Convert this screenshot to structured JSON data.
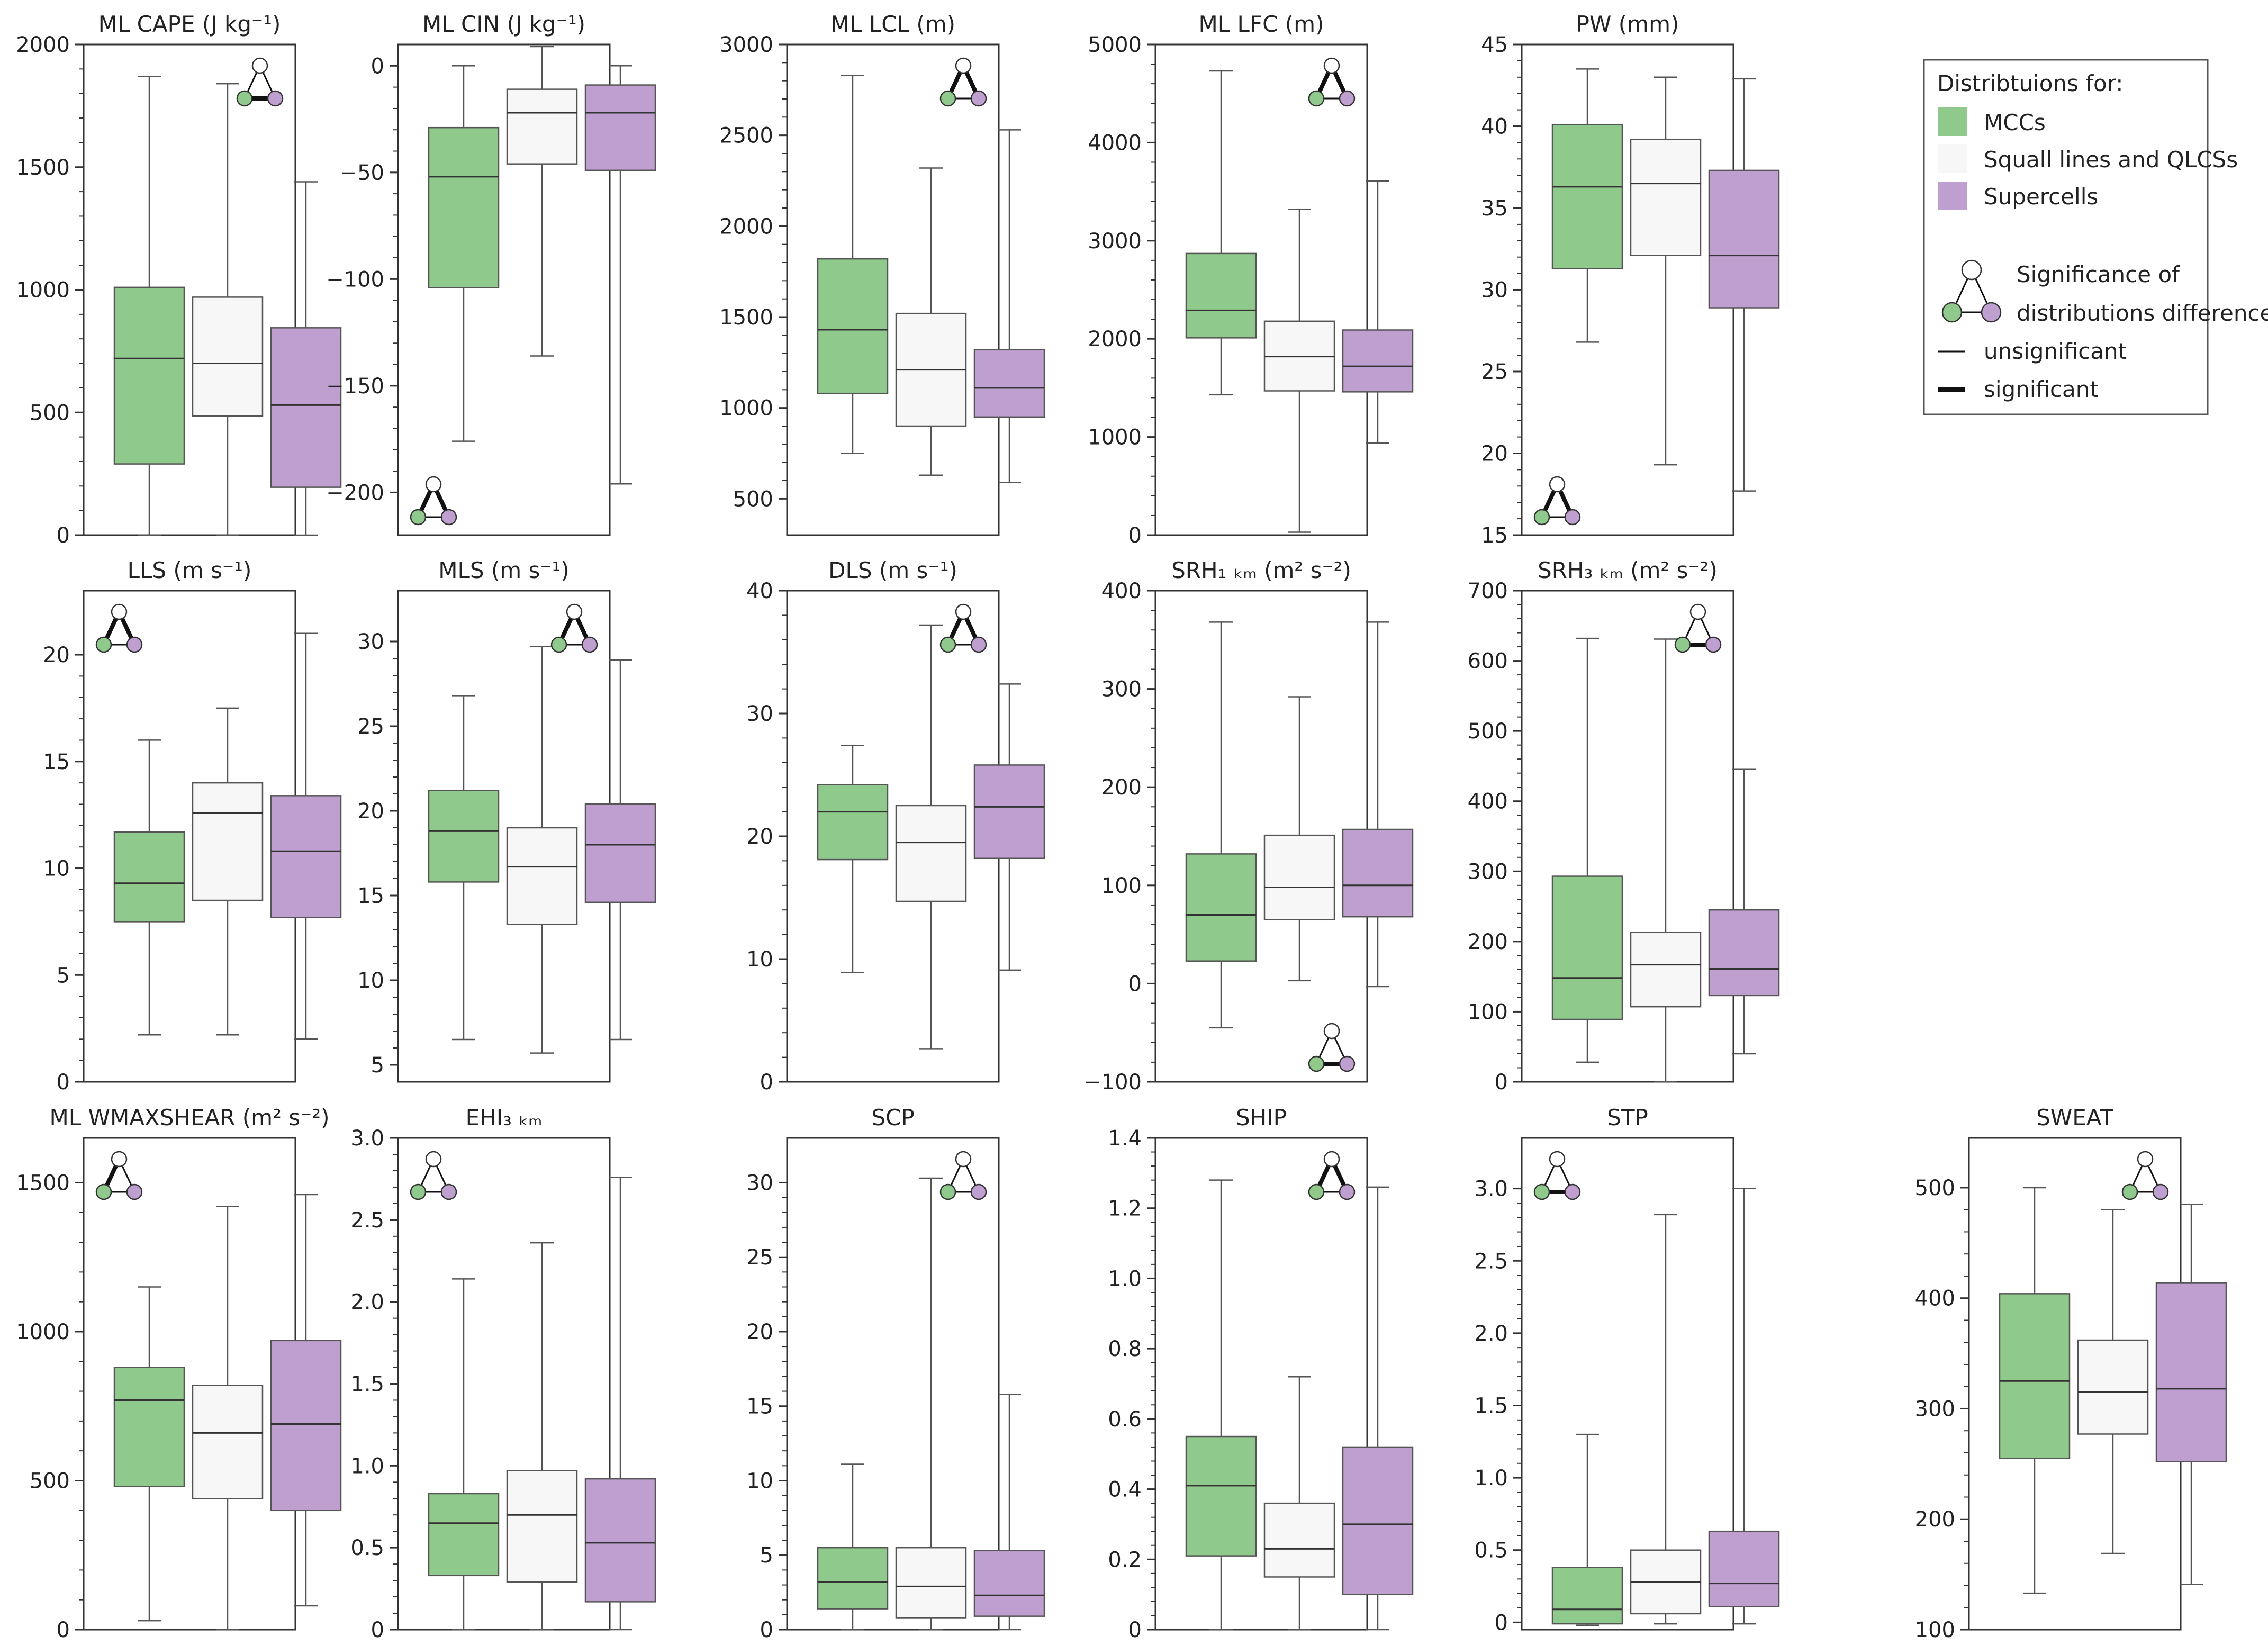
{
  "colors": {
    "mcc": "#8fc98c",
    "squall": "#f7f7f7",
    "supercell": "#bf9fd0",
    "line": "#555555",
    "axis": "#333333"
  },
  "legend": {
    "title": "Distribtuions for:",
    "items": [
      "MCCs",
      "Squall lines and QLCSs",
      "Supercells"
    ],
    "sig_title_1": "Significance of",
    "sig_title_2": "distributions difference",
    "unsig_label": "unsignificant",
    "sig_label": "significant"
  },
  "chart_data": [
    {
      "type": "box",
      "title": "ML CAPE (J kg⁻¹)",
      "ylim": [
        0,
        2000
      ],
      "ticks": [
        0,
        500,
        1000,
        1500,
        2000
      ],
      "tick_labels": [
        "0",
        "500",
        "1000",
        "1500",
        "2000"
      ],
      "sig_pos": "top-right",
      "sig": [
        false,
        true,
        false
      ],
      "series": [
        {
          "name": "MCCs",
          "min": 0,
          "q1": 290,
          "median": 720,
          "q3": 1010,
          "max": 1870
        },
        {
          "name": "Squall lines and QLCSs",
          "min": 0,
          "q1": 485,
          "median": 700,
          "q3": 970,
          "max": 1840
        },
        {
          "name": "Supercells",
          "min": 0,
          "q1": 195,
          "median": 530,
          "q3": 845,
          "max": 1440
        }
      ]
    },
    {
      "type": "box",
      "title": "ML CIN (J kg⁻¹)",
      "ylim": [
        -220,
        10
      ],
      "ticks": [
        -200,
        -150,
        -100,
        -50,
        0
      ],
      "tick_labels": [
        "−200",
        "−150",
        "−100",
        "−50",
        "0"
      ],
      "sig_pos": "bottom-left",
      "sig": [
        true,
        false,
        true
      ],
      "series": [
        {
          "name": "MCCs",
          "min": -176,
          "q1": -104,
          "median": -52,
          "q3": -29,
          "max": 0
        },
        {
          "name": "Squall lines and QLCSs",
          "min": -136,
          "q1": -46,
          "median": -22,
          "q3": -11,
          "max": 9
        },
        {
          "name": "Supercells",
          "min": -196,
          "q1": -49,
          "median": -22,
          "q3": -9,
          "max": 0
        }
      ]
    },
    {
      "type": "box",
      "title": "ML LCL (m)",
      "ylim": [
        300,
        3000
      ],
      "ticks": [
        500,
        1000,
        1500,
        2000,
        2500,
        3000
      ],
      "tick_labels": [
        "500",
        "1000",
        "1500",
        "2000",
        "2500",
        "3000"
      ],
      "sig_pos": "top-right",
      "sig": [
        true,
        false,
        true
      ],
      "series": [
        {
          "name": "MCCs",
          "min": 750,
          "q1": 1080,
          "median": 1430,
          "q3": 1820,
          "max": 2830
        },
        {
          "name": "Squall lines and QLCSs",
          "min": 630,
          "q1": 900,
          "median": 1210,
          "q3": 1520,
          "max": 2320
        },
        {
          "name": "Supercells",
          "min": 590,
          "q1": 950,
          "median": 1110,
          "q3": 1320,
          "max": 2530
        }
      ]
    },
    {
      "type": "box",
      "title": "ML LFC (m)",
      "ylim": [
        0,
        5000
      ],
      "ticks": [
        0,
        1000,
        2000,
        3000,
        4000,
        5000
      ],
      "tick_labels": [
        "0",
        "1000",
        "2000",
        "3000",
        "4000",
        "5000"
      ],
      "sig_pos": "top-right",
      "sig": [
        true,
        false,
        true
      ],
      "series": [
        {
          "name": "MCCs",
          "min": 1430,
          "q1": 2010,
          "median": 2290,
          "q3": 2870,
          "max": 4730
        },
        {
          "name": "Squall lines and QLCSs",
          "min": 30,
          "q1": 1470,
          "median": 1820,
          "q3": 2180,
          "max": 3320
        },
        {
          "name": "Supercells",
          "min": 940,
          "q1": 1460,
          "median": 1720,
          "q3": 2090,
          "max": 3610
        }
      ]
    },
    {
      "type": "box",
      "title": "PW (mm)",
      "ylim": [
        15,
        45
      ],
      "ticks": [
        15,
        20,
        25,
        30,
        35,
        40,
        45
      ],
      "tick_labels": [
        "15",
        "20",
        "25",
        "30",
        "35",
        "40",
        "45"
      ],
      "sig_pos": "bottom-left",
      "sig": [
        true,
        false,
        true
      ],
      "series": [
        {
          "name": "MCCs",
          "min": 26.8,
          "q1": 31.3,
          "median": 36.3,
          "q3": 40.1,
          "max": 43.5
        },
        {
          "name": "Squall lines and QLCSs",
          "min": 19.3,
          "q1": 32.1,
          "median": 36.5,
          "q3": 39.2,
          "max": 43
        },
        {
          "name": "Supercells",
          "min": 17.7,
          "q1": 28.9,
          "median": 32.1,
          "q3": 37.3,
          "max": 42.9
        }
      ]
    },
    {
      "type": "box",
      "title": "LLS (m s⁻¹)",
      "ylim": [
        0,
        23
      ],
      "ticks": [
        0,
        5,
        10,
        15,
        20
      ],
      "tick_labels": [
        "0",
        "5",
        "10",
        "15",
        "20"
      ],
      "sig_pos": "top-left",
      "sig": [
        true,
        false,
        true
      ],
      "series": [
        {
          "name": "MCCs",
          "min": 2.2,
          "q1": 7.5,
          "median": 9.3,
          "q3": 11.7,
          "max": 16
        },
        {
          "name": "Squall lines and QLCSs",
          "min": 2.2,
          "q1": 8.5,
          "median": 12.6,
          "q3": 14,
          "max": 17.5
        },
        {
          "name": "Supercells",
          "min": 2,
          "q1": 7.7,
          "median": 10.8,
          "q3": 13.4,
          "max": 21
        }
      ]
    },
    {
      "type": "box",
      "title": "MLS (m s⁻¹)",
      "ylim": [
        4,
        33
      ],
      "ticks": [
        5,
        10,
        15,
        20,
        25,
        30
      ],
      "tick_labels": [
        "5",
        "10",
        "15",
        "20",
        "25",
        "30"
      ],
      "sig_pos": "top-right",
      "sig": [
        true,
        false,
        true
      ],
      "series": [
        {
          "name": "MCCs",
          "min": 6.5,
          "q1": 15.8,
          "median": 18.8,
          "q3": 21.2,
          "max": 26.8
        },
        {
          "name": "Squall lines and QLCSs",
          "min": 5.7,
          "q1": 13.3,
          "median": 16.7,
          "q3": 19,
          "max": 29.7
        },
        {
          "name": "Supercells",
          "min": 6.5,
          "q1": 14.6,
          "median": 18,
          "q3": 20.4,
          "max": 28.9
        }
      ]
    },
    {
      "type": "box",
      "title": "DLS (m s⁻¹)",
      "ylim": [
        0,
        40
      ],
      "ticks": [
        0,
        10,
        20,
        30,
        40
      ],
      "tick_labels": [
        "0",
        "10",
        "20",
        "30",
        "40"
      ],
      "sig_pos": "top-right",
      "sig": [
        true,
        false,
        true
      ],
      "series": [
        {
          "name": "MCCs",
          "min": 8.9,
          "q1": 18.1,
          "median": 22,
          "q3": 24.2,
          "max": 27.4
        },
        {
          "name": "Squall lines and QLCSs",
          "min": 2.7,
          "q1": 14.7,
          "median": 19.5,
          "q3": 22.5,
          "max": 37.2
        },
        {
          "name": "Supercells",
          "min": 9.1,
          "q1": 18.2,
          "median": 22.4,
          "q3": 25.8,
          "max": 32.4
        }
      ]
    },
    {
      "type": "box",
      "title": "SRH₁ ₖₘ (m² s⁻²)",
      "ylim": [
        -100,
        400
      ],
      "ticks": [
        -100,
        0,
        100,
        200,
        300,
        400
      ],
      "tick_labels": [
        "−100",
        "0",
        "100",
        "200",
        "300",
        "400"
      ],
      "sig_pos": "bottom-right",
      "sig": [
        false,
        true,
        false
      ],
      "series": [
        {
          "name": "MCCs",
          "min": -45,
          "q1": 23,
          "median": 70,
          "q3": 132,
          "max": 368
        },
        {
          "name": "Squall lines and QLCSs",
          "min": 3,
          "q1": 65,
          "median": 98,
          "q3": 151,
          "max": 292
        },
        {
          "name": "Supercells",
          "min": -3,
          "q1": 68,
          "median": 100,
          "q3": 157,
          "max": 368
        }
      ]
    },
    {
      "type": "box",
      "title": "SRH₃ ₖₘ (m² s⁻²)",
      "ylim": [
        0,
        700
      ],
      "ticks": [
        0,
        100,
        200,
        300,
        400,
        500,
        600,
        700
      ],
      "tick_labels": [
        "0",
        "100",
        "200",
        "300",
        "400",
        "500",
        "600",
        "700"
      ],
      "sig_pos": "top-right",
      "sig": [
        false,
        true,
        false
      ],
      "series": [
        {
          "name": "MCCs",
          "min": 28,
          "q1": 89,
          "median": 148,
          "q3": 293,
          "max": 632
        },
        {
          "name": "Squall lines and QLCSs",
          "min": 0,
          "q1": 107,
          "median": 167,
          "q3": 213,
          "max": 631
        },
        {
          "name": "Supercells",
          "min": 40,
          "q1": 123,
          "median": 161,
          "q3": 245,
          "max": 446
        }
      ]
    },
    {
      "type": "box",
      "title": "ML WMAXSHEAR (m² s⁻²)",
      "ylim": [
        0,
        1650
      ],
      "ticks": [
        0,
        500,
        1000,
        1500
      ],
      "tick_labels": [
        "0",
        "500",
        "1000",
        "1500"
      ],
      "sig_pos": "top-left",
      "sig": [
        true,
        false,
        false
      ],
      "series": [
        {
          "name": "MCCs",
          "min": 30,
          "q1": 480,
          "median": 770,
          "q3": 880,
          "max": 1150
        },
        {
          "name": "Squall lines and QLCSs",
          "min": 0,
          "q1": 440,
          "median": 660,
          "q3": 820,
          "max": 1420
        },
        {
          "name": "Supercells",
          "min": 80,
          "q1": 400,
          "median": 690,
          "q3": 970,
          "max": 1460
        }
      ]
    },
    {
      "type": "box",
      "title": "EHI₃ ₖₘ",
      "ylim": [
        0,
        3
      ],
      "ticks": [
        0,
        0.5,
        1,
        1.5,
        2,
        2.5,
        3
      ],
      "tick_labels": [
        "0",
        "0.5",
        "1.0",
        "1.5",
        "2.0",
        "2.5",
        "3.0"
      ],
      "sig_pos": "top-left",
      "sig": [
        false,
        false,
        false
      ],
      "series": [
        {
          "name": "MCCs",
          "min": 0,
          "q1": 0.33,
          "median": 0.65,
          "q3": 0.83,
          "max": 2.14
        },
        {
          "name": "Squall lines and QLCSs",
          "min": 0,
          "q1": 0.29,
          "median": 0.7,
          "q3": 0.97,
          "max": 2.36
        },
        {
          "name": "Supercells",
          "min": 0,
          "q1": 0.17,
          "median": 0.53,
          "q3": 0.92,
          "max": 2.76
        }
      ]
    },
    {
      "type": "box",
      "title": "SCP",
      "ylim": [
        0,
        33
      ],
      "ticks": [
        0,
        5,
        10,
        15,
        20,
        25,
        30
      ],
      "tick_labels": [
        "0",
        "5",
        "10",
        "15",
        "20",
        "25",
        "30"
      ],
      "sig_pos": "top-right",
      "sig": [
        false,
        false,
        false
      ],
      "series": [
        {
          "name": "MCCs",
          "min": 0,
          "q1": 1.4,
          "median": 3.2,
          "q3": 5.5,
          "max": 11.1
        },
        {
          "name": "Squall lines and QLCSs",
          "min": 0,
          "q1": 0.8,
          "median": 2.9,
          "q3": 5.5,
          "max": 30.3
        },
        {
          "name": "Supercells",
          "min": 0,
          "q1": 0.9,
          "median": 2.3,
          "q3": 5.3,
          "max": 15.8
        }
      ]
    },
    {
      "type": "box",
      "title": "SHIP",
      "ylim": [
        0,
        1.4
      ],
      "ticks": [
        0,
        0.2,
        0.4,
        0.6,
        0.8,
        1,
        1.2,
        1.4
      ],
      "tick_labels": [
        "0",
        "0.2",
        "0.4",
        "0.6",
        "0.8",
        "1.0",
        "1.2",
        "1.4"
      ],
      "sig_pos": "top-right",
      "sig": [
        true,
        false,
        true
      ],
      "series": [
        {
          "name": "MCCs",
          "min": 0,
          "q1": 0.21,
          "median": 0.41,
          "q3": 0.55,
          "max": 1.28
        },
        {
          "name": "Squall lines and QLCSs",
          "min": 0,
          "q1": 0.15,
          "median": 0.23,
          "q3": 0.36,
          "max": 0.72
        },
        {
          "name": "Supercells",
          "min": 0,
          "q1": 0.1,
          "median": 0.3,
          "q3": 0.52,
          "max": 1.26
        }
      ]
    },
    {
      "type": "box",
      "title": "STP",
      "ylim": [
        -0.05,
        3.35
      ],
      "ticks": [
        0,
        0.5,
        1,
        1.5,
        2,
        2.5,
        3
      ],
      "tick_labels": [
        "0",
        "0.5",
        "1.0",
        "1.5",
        "2.0",
        "2.5",
        "3.0"
      ],
      "sig_pos": "top-left",
      "sig": [
        false,
        true,
        false
      ],
      "series": [
        {
          "name": "MCCs",
          "min": -0.02,
          "q1": -0.01,
          "median": 0.09,
          "q3": 0.38,
          "max": 1.3
        },
        {
          "name": "Squall lines and QLCSs",
          "min": -0.01,
          "q1": 0.06,
          "median": 0.28,
          "q3": 0.5,
          "max": 2.82
        },
        {
          "name": "Supercells",
          "min": -0.01,
          "q1": 0.11,
          "median": 0.27,
          "q3": 0.63,
          "max": 3
        }
      ]
    },
    {
      "type": "box",
      "title": "SWEAT",
      "ylim": [
        100,
        545
      ],
      "ticks": [
        100,
        200,
        300,
        400,
        500
      ],
      "tick_labels": [
        "100",
        "200",
        "300",
        "400",
        "500"
      ],
      "sig_pos": "top-right",
      "sig": [
        false,
        false,
        false
      ],
      "series": [
        {
          "name": "MCCs",
          "min": 133,
          "q1": 255,
          "median": 325,
          "q3": 404,
          "max": 500
        },
        {
          "name": "Squall lines and QLCSs",
          "min": 169,
          "q1": 277,
          "median": 315,
          "q3": 362,
          "max": 480
        },
        {
          "name": "Supercells",
          "min": 141,
          "q1": 252,
          "median": 318,
          "q3": 414,
          "max": 485
        }
      ]
    }
  ]
}
